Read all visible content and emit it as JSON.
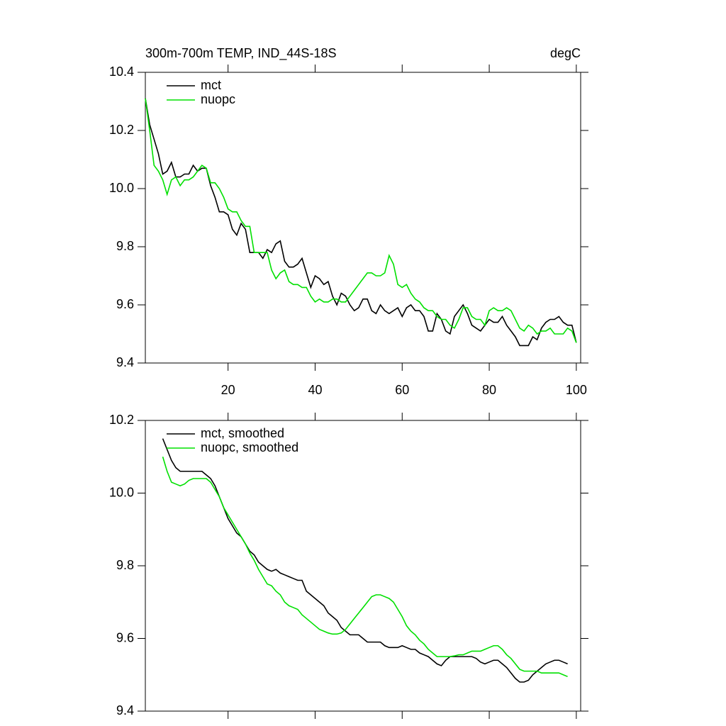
{
  "chart_data": [
    {
      "type": "line",
      "title": "300m-700m TEMP, IND_44S-18S",
      "units": "degC",
      "x": [
        1,
        2,
        3,
        4,
        5,
        6,
        7,
        8,
        9,
        10,
        11,
        12,
        13,
        14,
        15,
        16,
        17,
        18,
        19,
        20,
        21,
        22,
        23,
        24,
        25,
        26,
        27,
        28,
        29,
        30,
        31,
        32,
        33,
        34,
        35,
        36,
        37,
        38,
        39,
        40,
        41,
        42,
        43,
        44,
        45,
        46,
        47,
        48,
        49,
        50,
        51,
        52,
        53,
        54,
        55,
        56,
        57,
        58,
        59,
        60,
        61,
        62,
        63,
        64,
        65,
        66,
        67,
        68,
        69,
        70,
        71,
        72,
        73,
        74,
        75,
        76,
        77,
        78,
        79,
        80,
        81,
        82,
        83,
        84,
        85,
        86,
        87,
        88,
        89,
        90,
        91,
        92,
        93,
        94,
        95,
        96,
        97,
        98,
        99,
        100
      ],
      "series": [
        {
          "name": "mct",
          "color": "#000000",
          "values": [
            10.31,
            10.22,
            10.17,
            10.12,
            10.05,
            10.06,
            10.09,
            10.04,
            10.04,
            10.05,
            10.05,
            10.08,
            10.06,
            10.07,
            10.07,
            10.01,
            9.97,
            9.92,
            9.92,
            9.91,
            9.86,
            9.84,
            9.88,
            9.86,
            9.78,
            9.78,
            9.78,
            9.76,
            9.79,
            9.78,
            9.81,
            9.82,
            9.75,
            9.73,
            9.73,
            9.74,
            9.76,
            9.71,
            9.66,
            9.7,
            9.69,
            9.67,
            9.68,
            9.63,
            9.6,
            9.64,
            9.63,
            9.6,
            9.58,
            9.59,
            9.62,
            9.62,
            9.58,
            9.57,
            9.6,
            9.58,
            9.57,
            9.58,
            9.59,
            9.56,
            9.59,
            9.6,
            9.58,
            9.58,
            9.56,
            9.51,
            9.51,
            9.57,
            9.55,
            9.51,
            9.5,
            9.56,
            9.58,
            9.6,
            9.57,
            9.53,
            9.52,
            9.51,
            9.53,
            9.55,
            9.54,
            9.54,
            9.56,
            9.53,
            9.51,
            9.49,
            9.46,
            9.46,
            9.46,
            9.49,
            9.48,
            9.52,
            9.54,
            9.55,
            9.55,
            9.56,
            9.54,
            9.53,
            9.53,
            9.47
          ]
        },
        {
          "name": "nuopc",
          "color": "#00e000",
          "values": [
            10.31,
            10.2,
            10.08,
            10.06,
            10.03,
            9.98,
            10.03,
            10.04,
            10.01,
            10.03,
            10.03,
            10.04,
            10.06,
            10.08,
            10.07,
            10.02,
            10.02,
            10.0,
            9.97,
            9.93,
            9.92,
            9.92,
            9.89,
            9.87,
            9.87,
            9.78,
            9.78,
            9.78,
            9.78,
            9.72,
            9.69,
            9.71,
            9.72,
            9.68,
            9.67,
            9.67,
            9.66,
            9.66,
            9.63,
            9.61,
            9.62,
            9.61,
            9.61,
            9.62,
            9.62,
            9.61,
            9.61,
            9.63,
            9.65,
            9.67,
            9.69,
            9.71,
            9.71,
            9.7,
            9.7,
            9.71,
            9.77,
            9.74,
            9.67,
            9.66,
            9.67,
            9.64,
            9.62,
            9.61,
            9.59,
            9.58,
            9.58,
            9.56,
            9.55,
            9.55,
            9.53,
            9.52,
            9.55,
            9.59,
            9.59,
            9.56,
            9.55,
            9.55,
            9.53,
            9.58,
            9.59,
            9.58,
            9.58,
            9.59,
            9.58,
            9.55,
            9.52,
            9.51,
            9.53,
            9.52,
            9.5,
            9.51,
            9.51,
            9.52,
            9.5,
            9.5,
            9.5,
            9.52,
            9.51,
            9.47
          ]
        }
      ],
      "xlim": [
        1,
        101
      ],
      "xticks": [
        20,
        40,
        60,
        80,
        100
      ],
      "ylim": [
        9.4,
        10.4
      ],
      "yticks": [
        9.4,
        9.6,
        9.8,
        {
          "value": 10,
          "label": "10.0"
        },
        10.2,
        10.4
      ]
    },
    {
      "type": "line",
      "x": [
        5,
        6,
        7,
        8,
        9,
        10,
        11,
        12,
        13,
        14,
        15,
        16,
        17,
        18,
        19,
        20,
        21,
        22,
        23,
        24,
        25,
        26,
        27,
        28,
        29,
        30,
        31,
        32,
        33,
        34,
        35,
        36,
        37,
        38,
        39,
        40,
        41,
        42,
        43,
        44,
        45,
        46,
        47,
        48,
        49,
        50,
        51,
        52,
        53,
        54,
        55,
        56,
        57,
        58,
        59,
        60,
        61,
        62,
        63,
        64,
        65,
        66,
        67,
        68,
        69,
        70,
        71,
        72,
        73,
        74,
        75,
        76,
        77,
        78,
        79,
        80,
        81,
        82,
        83,
        84,
        85,
        86,
        87,
        88,
        89,
        90,
        91,
        92,
        93,
        94,
        95,
        96,
        97,
        98
      ],
      "series": [
        {
          "name": "mct, smoothed",
          "color": "#000000",
          "values": [
            10.15,
            10.12,
            10.09,
            10.07,
            10.06,
            10.06,
            10.06,
            10.06,
            10.06,
            10.06,
            10.05,
            10.04,
            10.02,
            9.99,
            9.96,
            9.93,
            9.91,
            9.89,
            9.88,
            9.86,
            9.84,
            9.83,
            9.81,
            9.8,
            9.79,
            9.785,
            9.79,
            9.78,
            9.775,
            9.77,
            9.765,
            9.76,
            9.76,
            9.73,
            9.72,
            9.71,
            9.7,
            9.69,
            9.67,
            9.66,
            9.65,
            9.63,
            9.62,
            9.61,
            9.61,
            9.61,
            9.6,
            9.59,
            9.59,
            9.59,
            9.59,
            9.58,
            9.575,
            9.575,
            9.575,
            9.58,
            9.575,
            9.57,
            9.57,
            9.56,
            9.555,
            9.55,
            9.54,
            9.53,
            9.525,
            9.54,
            9.55,
            9.55,
            9.55,
            9.55,
            9.55,
            9.55,
            9.545,
            9.535,
            9.53,
            9.535,
            9.54,
            9.54,
            9.53,
            9.52,
            9.505,
            9.49,
            9.48,
            9.48,
            9.485,
            9.5,
            9.51,
            9.52,
            9.53,
            9.535,
            9.54,
            9.54,
            9.535,
            9.53
          ]
        },
        {
          "name": "nuopc, smoothed",
          "color": "#00e000",
          "values": [
            10.1,
            10.06,
            10.03,
            10.025,
            10.02,
            10.025,
            10.035,
            10.04,
            10.04,
            10.04,
            10.04,
            10.03,
            10.01,
            9.99,
            9.96,
            9.94,
            9.92,
            9.9,
            9.88,
            9.86,
            9.835,
            9.815,
            9.79,
            9.77,
            9.75,
            9.745,
            9.73,
            9.72,
            9.7,
            9.69,
            9.685,
            9.68,
            9.665,
            9.655,
            9.645,
            9.635,
            9.625,
            9.62,
            9.615,
            9.612,
            9.612,
            9.615,
            9.625,
            9.64,
            9.655,
            9.67,
            9.685,
            9.7,
            9.715,
            9.72,
            9.72,
            9.715,
            9.71,
            9.7,
            9.68,
            9.66,
            9.635,
            9.62,
            9.61,
            9.595,
            9.585,
            9.57,
            9.56,
            9.55,
            9.55,
            9.55,
            9.55,
            9.552,
            9.555,
            9.555,
            9.56,
            9.565,
            9.565,
            9.565,
            9.57,
            9.575,
            9.58,
            9.58,
            9.57,
            9.555,
            9.545,
            9.53,
            9.515,
            9.51,
            9.51,
            9.51,
            9.51,
            9.505,
            9.505,
            9.505,
            9.505,
            9.505,
            9.5,
            9.495
          ]
        }
      ],
      "xlim": [
        1,
        101
      ],
      "xticks": [
        20,
        40,
        60,
        80,
        100
      ],
      "ylim": [
        9.4,
        10.2
      ],
      "yticks": [
        9.4,
        9.6,
        9.8,
        {
          "value": 10,
          "label": "10.0"
        },
        10.2
      ]
    }
  ]
}
